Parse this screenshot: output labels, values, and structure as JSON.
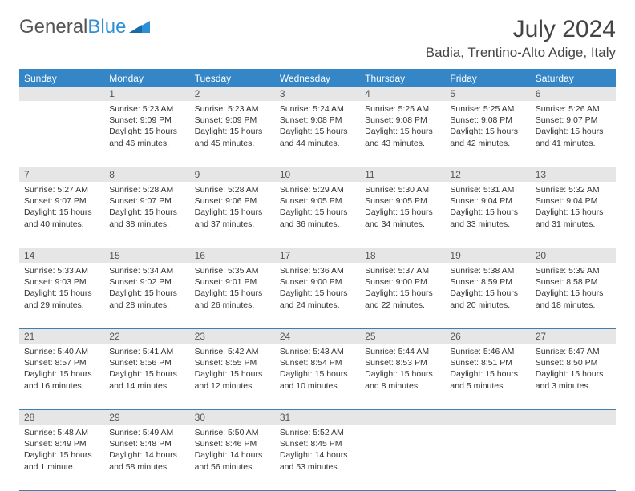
{
  "logo": {
    "text1": "General",
    "text2": "Blue"
  },
  "title": "July 2024",
  "location": "Badia, Trentino-Alto Adige, Italy",
  "colors": {
    "header_bar": "#3486c7",
    "daynum_bg": "#e6e6e6",
    "week_border": "#3f7fb0",
    "text": "#333333",
    "logo_gray": "#555555",
    "logo_blue": "#2d8fd5"
  },
  "daynames": [
    "Sunday",
    "Monday",
    "Tuesday",
    "Wednesday",
    "Thursday",
    "Friday",
    "Saturday"
  ],
  "weeks": [
    {
      "nums": [
        "",
        "1",
        "2",
        "3",
        "4",
        "5",
        "6"
      ],
      "cells": [
        {
          "sunrise": "",
          "sunset": "",
          "daylight": ""
        },
        {
          "sunrise": "Sunrise: 5:23 AM",
          "sunset": "Sunset: 9:09 PM",
          "daylight": "Daylight: 15 hours and 46 minutes."
        },
        {
          "sunrise": "Sunrise: 5:23 AM",
          "sunset": "Sunset: 9:09 PM",
          "daylight": "Daylight: 15 hours and 45 minutes."
        },
        {
          "sunrise": "Sunrise: 5:24 AM",
          "sunset": "Sunset: 9:08 PM",
          "daylight": "Daylight: 15 hours and 44 minutes."
        },
        {
          "sunrise": "Sunrise: 5:25 AM",
          "sunset": "Sunset: 9:08 PM",
          "daylight": "Daylight: 15 hours and 43 minutes."
        },
        {
          "sunrise": "Sunrise: 5:25 AM",
          "sunset": "Sunset: 9:08 PM",
          "daylight": "Daylight: 15 hours and 42 minutes."
        },
        {
          "sunrise": "Sunrise: 5:26 AM",
          "sunset": "Sunset: 9:07 PM",
          "daylight": "Daylight: 15 hours and 41 minutes."
        }
      ]
    },
    {
      "nums": [
        "7",
        "8",
        "9",
        "10",
        "11",
        "12",
        "13"
      ],
      "cells": [
        {
          "sunrise": "Sunrise: 5:27 AM",
          "sunset": "Sunset: 9:07 PM",
          "daylight": "Daylight: 15 hours and 40 minutes."
        },
        {
          "sunrise": "Sunrise: 5:28 AM",
          "sunset": "Sunset: 9:07 PM",
          "daylight": "Daylight: 15 hours and 38 minutes."
        },
        {
          "sunrise": "Sunrise: 5:28 AM",
          "sunset": "Sunset: 9:06 PM",
          "daylight": "Daylight: 15 hours and 37 minutes."
        },
        {
          "sunrise": "Sunrise: 5:29 AM",
          "sunset": "Sunset: 9:05 PM",
          "daylight": "Daylight: 15 hours and 36 minutes."
        },
        {
          "sunrise": "Sunrise: 5:30 AM",
          "sunset": "Sunset: 9:05 PM",
          "daylight": "Daylight: 15 hours and 34 minutes."
        },
        {
          "sunrise": "Sunrise: 5:31 AM",
          "sunset": "Sunset: 9:04 PM",
          "daylight": "Daylight: 15 hours and 33 minutes."
        },
        {
          "sunrise": "Sunrise: 5:32 AM",
          "sunset": "Sunset: 9:04 PM",
          "daylight": "Daylight: 15 hours and 31 minutes."
        }
      ]
    },
    {
      "nums": [
        "14",
        "15",
        "16",
        "17",
        "18",
        "19",
        "20"
      ],
      "cells": [
        {
          "sunrise": "Sunrise: 5:33 AM",
          "sunset": "Sunset: 9:03 PM",
          "daylight": "Daylight: 15 hours and 29 minutes."
        },
        {
          "sunrise": "Sunrise: 5:34 AM",
          "sunset": "Sunset: 9:02 PM",
          "daylight": "Daylight: 15 hours and 28 minutes."
        },
        {
          "sunrise": "Sunrise: 5:35 AM",
          "sunset": "Sunset: 9:01 PM",
          "daylight": "Daylight: 15 hours and 26 minutes."
        },
        {
          "sunrise": "Sunrise: 5:36 AM",
          "sunset": "Sunset: 9:00 PM",
          "daylight": "Daylight: 15 hours and 24 minutes."
        },
        {
          "sunrise": "Sunrise: 5:37 AM",
          "sunset": "Sunset: 9:00 PM",
          "daylight": "Daylight: 15 hours and 22 minutes."
        },
        {
          "sunrise": "Sunrise: 5:38 AM",
          "sunset": "Sunset: 8:59 PM",
          "daylight": "Daylight: 15 hours and 20 minutes."
        },
        {
          "sunrise": "Sunrise: 5:39 AM",
          "sunset": "Sunset: 8:58 PM",
          "daylight": "Daylight: 15 hours and 18 minutes."
        }
      ]
    },
    {
      "nums": [
        "21",
        "22",
        "23",
        "24",
        "25",
        "26",
        "27"
      ],
      "cells": [
        {
          "sunrise": "Sunrise: 5:40 AM",
          "sunset": "Sunset: 8:57 PM",
          "daylight": "Daylight: 15 hours and 16 minutes."
        },
        {
          "sunrise": "Sunrise: 5:41 AM",
          "sunset": "Sunset: 8:56 PM",
          "daylight": "Daylight: 15 hours and 14 minutes."
        },
        {
          "sunrise": "Sunrise: 5:42 AM",
          "sunset": "Sunset: 8:55 PM",
          "daylight": "Daylight: 15 hours and 12 minutes."
        },
        {
          "sunrise": "Sunrise: 5:43 AM",
          "sunset": "Sunset: 8:54 PM",
          "daylight": "Daylight: 15 hours and 10 minutes."
        },
        {
          "sunrise": "Sunrise: 5:44 AM",
          "sunset": "Sunset: 8:53 PM",
          "daylight": "Daylight: 15 hours and 8 minutes."
        },
        {
          "sunrise": "Sunrise: 5:46 AM",
          "sunset": "Sunset: 8:51 PM",
          "daylight": "Daylight: 15 hours and 5 minutes."
        },
        {
          "sunrise": "Sunrise: 5:47 AM",
          "sunset": "Sunset: 8:50 PM",
          "daylight": "Daylight: 15 hours and 3 minutes."
        }
      ]
    },
    {
      "nums": [
        "28",
        "29",
        "30",
        "31",
        "",
        "",
        ""
      ],
      "cells": [
        {
          "sunrise": "Sunrise: 5:48 AM",
          "sunset": "Sunset: 8:49 PM",
          "daylight": "Daylight: 15 hours and 1 minute."
        },
        {
          "sunrise": "Sunrise: 5:49 AM",
          "sunset": "Sunset: 8:48 PM",
          "daylight": "Daylight: 14 hours and 58 minutes."
        },
        {
          "sunrise": "Sunrise: 5:50 AM",
          "sunset": "Sunset: 8:46 PM",
          "daylight": "Daylight: 14 hours and 56 minutes."
        },
        {
          "sunrise": "Sunrise: 5:52 AM",
          "sunset": "Sunset: 8:45 PM",
          "daylight": "Daylight: 14 hours and 53 minutes."
        },
        {
          "sunrise": "",
          "sunset": "",
          "daylight": ""
        },
        {
          "sunrise": "",
          "sunset": "",
          "daylight": ""
        },
        {
          "sunrise": "",
          "sunset": "",
          "daylight": ""
        }
      ]
    }
  ]
}
